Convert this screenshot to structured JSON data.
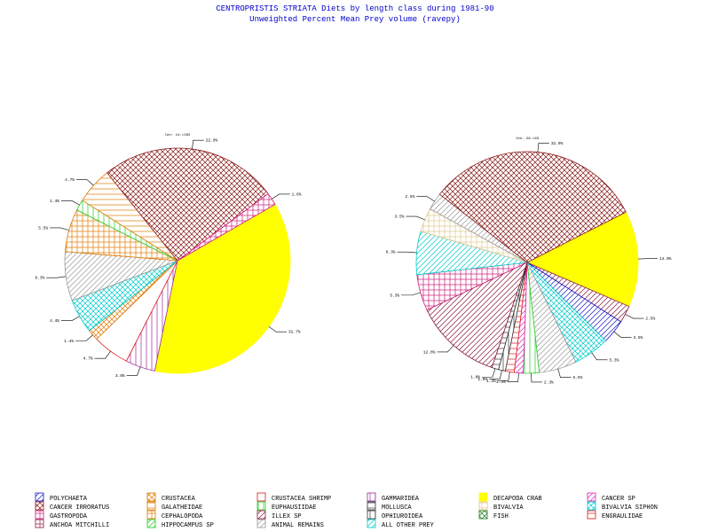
{
  "chart_data": {
    "type": "pie",
    "title": "CENTROPRISTIS STRIATA Diets by length class during 1981-90",
    "subtitle": "Unweighted Percent Mean Prey volume (ravepy)",
    "legend_position": "bottom",
    "legend": [
      {
        "name": "POLYCHAETA",
        "color": "#1a1acc",
        "pattern": "slash"
      },
      {
        "name": "CRUSTACEA",
        "color": "#e07a00",
        "pattern": "cross"
      },
      {
        "name": "CRUSTACEA SHRIMP",
        "color": "#e01a1a",
        "pattern": "open"
      },
      {
        "name": "GAMMARIDEA",
        "color": "#9a2a9a",
        "pattern": "vline"
      },
      {
        "name": "DECAPODA CRAB",
        "color": "#ffff00",
        "pattern": "solid"
      },
      {
        "name": "CANCER SP",
        "color": "#e01ab4",
        "pattern": "slash"
      },
      {
        "name": "CANCER IRRORATUS",
        "color": "#8a1a1a",
        "pattern": "cross"
      },
      {
        "name": "GALATHEIDAE",
        "color": "#e07a00",
        "pattern": "hline"
      },
      {
        "name": "EUPHAUSIIDAE",
        "color": "#22cc22",
        "pattern": "vline"
      },
      {
        "name": "MOLLUSCA",
        "color": "#333333",
        "pattern": "hline"
      },
      {
        "name": "BIVALVIA",
        "color": "#e0c890",
        "pattern": "grid"
      },
      {
        "name": "BIVALVIA SIPHON",
        "color": "#00cccc",
        "pattern": "cross"
      },
      {
        "name": "GASTROPODA",
        "color": "#d01a7a",
        "pattern": "grid"
      },
      {
        "name": "CEPHALOPODA",
        "color": "#e07a00",
        "pattern": "grid"
      },
      {
        "name": "ILLEX SP",
        "color": "#8a1a3a",
        "pattern": "slash"
      },
      {
        "name": "OPHIUROIDEA",
        "color": "#333333",
        "pattern": "vline"
      },
      {
        "name": "FISH",
        "color": "#1a7a1a",
        "pattern": "cross"
      },
      {
        "name": "ENGRAULIDAE",
        "color": "#e01a1a",
        "pattern": "hline"
      },
      {
        "name": "ANCHOA MITCHILLI",
        "color": "#8a1a3a",
        "pattern": "grid"
      },
      {
        "name": "HIPPOCAMPUS SP",
        "color": "#22cc22",
        "pattern": "slash"
      },
      {
        "name": "ANIMAL REMAINS",
        "color": "#999999",
        "pattern": "slash"
      },
      {
        "name": "ALL OTHER PREY",
        "color": "#00cccc",
        "pattern": "slash"
      }
    ],
    "pies": [
      {
        "caption": "len: 14-<262",
        "slices": [
          {
            "name": "DECAPODA CRAB",
            "value": 32.7,
            "label": "32.7%"
          },
          {
            "name": "GAMMARIDEA",
            "value": 3.8,
            "label": "3.8%"
          },
          {
            "name": "CRUSTACEA SHRIMP",
            "value": 4.7,
            "label": "4.7%"
          },
          {
            "name": "CRUSTACEA",
            "value": 1.4,
            "label": "1.4%"
          },
          {
            "name": "BIVALVIA SIPHON",
            "value": 4.4,
            "label": "4.4%"
          },
          {
            "name": "ANIMAL REMAINS",
            "value": 6.3,
            "label": "6.3%"
          },
          {
            "name": "CEPHALOPODA",
            "value": 5.5,
            "label": "5.5%"
          },
          {
            "name": "EUPHAUSIIDAE",
            "value": 1.4,
            "label": "1.4%"
          },
          {
            "name": "GALATHEIDAE",
            "value": 4.7,
            "label": "4.7%"
          },
          {
            "name": "CANCER IRRORATUS",
            "value": 22.9,
            "label": "22.9%"
          },
          {
            "name": "GASTROPODA",
            "value": 1.6,
            "label": "1.6%"
          }
        ]
      },
      {
        "caption": "len: 28-<93",
        "slices": [
          {
            "name": "DECAPODA CRAB",
            "value": 14.0,
            "label": "14.0%"
          },
          {
            "name": "ILLEX SP",
            "value": 2.5,
            "label": "2.5%"
          },
          {
            "name": "POLYCHAETA",
            "value": 3.5,
            "label": "3.5%"
          },
          {
            "name": "BIVALVIA SIPHON",
            "value": 5.3,
            "label": "5.3%"
          },
          {
            "name": "ANIMAL REMAINS",
            "value": 5.5,
            "label": "5.5%"
          },
          {
            "name": "EUPHAUSIIDAE",
            "value": 2.3,
            "label": "2.3%"
          },
          {
            "name": "CANCER SP",
            "value": 1.3,
            "label": "1.3%"
          },
          {
            "name": "ENGRAULIDAE",
            "value": 1.3,
            "label": "1.3%"
          },
          {
            "name": "OPHIUROIDEA",
            "value": 1.0,
            "label": "1.0%"
          },
          {
            "name": "MOLLUSCA",
            "value": 1.0,
            "label": "1.0%"
          },
          {
            "name": "ILLEX SP",
            "value": 12.8,
            "label": "12.8%"
          },
          {
            "name": "GASTROPODA",
            "value": 5.3,
            "label": "5.3%"
          },
          {
            "name": "ALL OTHER PREY",
            "value": 6.3,
            "label": "6.3%"
          },
          {
            "name": "BIVALVIA",
            "value": 3.5,
            "label": "3.5%"
          },
          {
            "name": "ANIMAL REMAINS",
            "value": 2.5,
            "label": "2.5%"
          },
          {
            "name": "CANCER IRRORATUS",
            "value": 32.0,
            "label": "32.0%"
          }
        ]
      }
    ]
  }
}
